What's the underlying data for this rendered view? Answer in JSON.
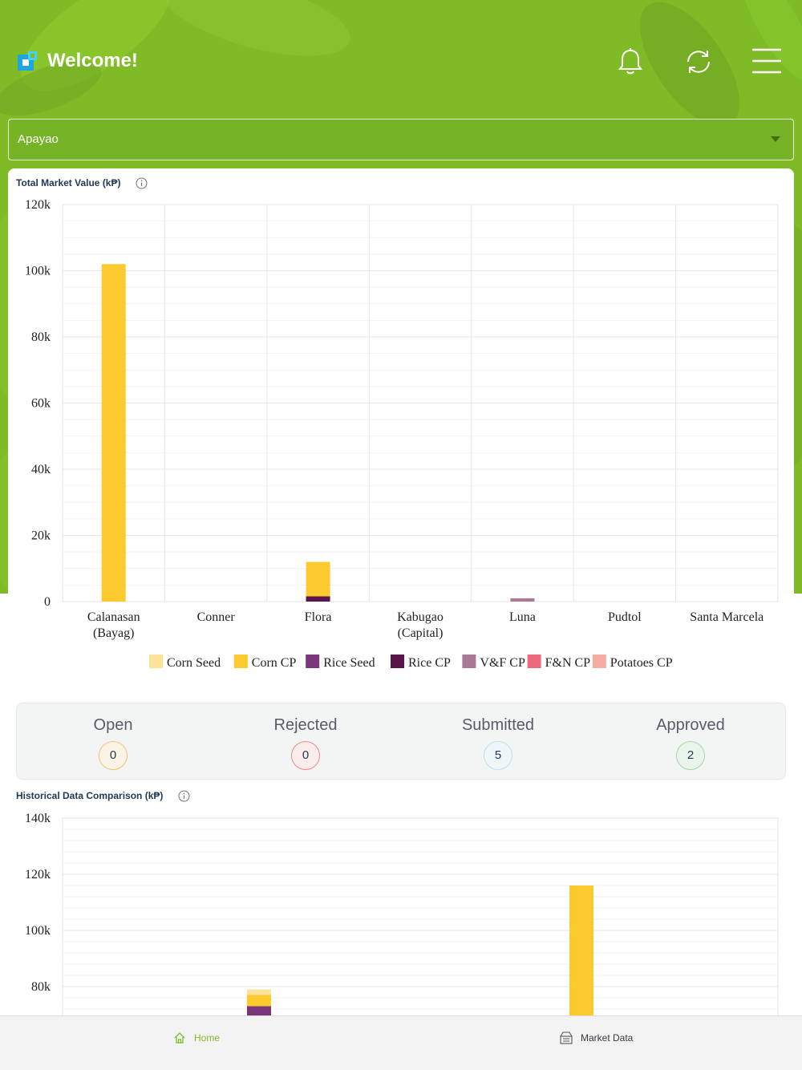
{
  "header": {
    "welcome": "Welcome!",
    "icons": [
      "bell-icon",
      "refresh-icon",
      "menu-icon"
    ]
  },
  "province_select": {
    "value": "Apayao"
  },
  "colors": {
    "brand_green": "#7fbb27",
    "corn_seed": "#fde39a",
    "corn_cp": "#fbca2e",
    "rice_seed": "#7b3579",
    "rice_cp": "#5a1548",
    "vf_cp": "#a87896",
    "fn_cp": "#ec6a7c",
    "potatoes_cp": "#f5aca4"
  },
  "market_chart": {
    "title": "Total Market Value (k₱)",
    "chart_data": {
      "type": "bar",
      "stacked": true,
      "ylim": [
        0,
        120000
      ],
      "yticks": [
        "0",
        "20k",
        "40k",
        "60k",
        "80k",
        "100k",
        "120k"
      ],
      "categories": [
        [
          "Calanasan",
          "(Bayag)"
        ],
        [
          "Conner"
        ],
        [
          "Flora"
        ],
        [
          "Kabugao",
          "(Capital)"
        ],
        [
          "Luna"
        ],
        [
          "Pudtol"
        ],
        [
          "Santa Marcela"
        ]
      ],
      "series": [
        {
          "name": "Corn Seed",
          "color": "#fde39a",
          "values": [
            0,
            0,
            0,
            0,
            0,
            0,
            0
          ]
        },
        {
          "name": "Corn CP",
          "color": "#fbca2e",
          "values": [
            102000,
            0,
            10400,
            0,
            0,
            0,
            0
          ]
        },
        {
          "name": "Rice Seed",
          "color": "#7b3579",
          "values": [
            0,
            0,
            0,
            0,
            0,
            0,
            0
          ]
        },
        {
          "name": "Rice CP",
          "color": "#5a1548",
          "values": [
            0,
            0,
            1600,
            0,
            0,
            0,
            0
          ]
        },
        {
          "name": "V&F CP",
          "color": "#a87896",
          "values": [
            0,
            0,
            0,
            0,
            1000,
            0,
            0
          ]
        },
        {
          "name": "F&N CP",
          "color": "#ec6a7c",
          "values": [
            0,
            0,
            0,
            0,
            0,
            0,
            0
          ]
        },
        {
          "name": "Potatoes CP",
          "color": "#f5aca4",
          "values": [
            0,
            0,
            0,
            0,
            0,
            0,
            0
          ]
        }
      ],
      "legend_position": "bottom",
      "grid": true
    }
  },
  "status": {
    "items": [
      {
        "label": "Open",
        "count": "0",
        "color": "#f3c27a",
        "fill": "#fbf3e4"
      },
      {
        "label": "Rejected",
        "count": "0",
        "color": "#ee8a8a",
        "fill": "#fbecec"
      },
      {
        "label": "Submitted",
        "count": "5",
        "color": "#bfe0ea",
        "fill": "#eef6f8"
      },
      {
        "label": "Approved",
        "count": "2",
        "color": "#a8d6a9",
        "fill": "#e9f5ea"
      }
    ]
  },
  "historical_chart": {
    "title": "Historical Data Comparison (k₱)",
    "chart_data": {
      "type": "bar",
      "stacked": true,
      "ylim": [
        0,
        140000
      ],
      "yticks": [
        "80k",
        "100k",
        "120k",
        "140k"
      ],
      "series": [
        {
          "name": "Rice Seed",
          "color": "#7b3579",
          "values": [
            0,
            73000,
            0
          ]
        },
        {
          "name": "Corn CP",
          "color": "#fbca2e",
          "values": [
            0,
            4000,
            116000
          ]
        },
        {
          "name": "Corn Seed",
          "color": "#fde39a",
          "values": [
            0,
            2000,
            0
          ]
        }
      ],
      "grid": true
    }
  },
  "bottom_nav": {
    "items": [
      {
        "label": "Home",
        "icon": "home-icon",
        "active": true
      },
      {
        "label": "Market Data",
        "icon": "market-data-icon",
        "active": false
      }
    ]
  }
}
